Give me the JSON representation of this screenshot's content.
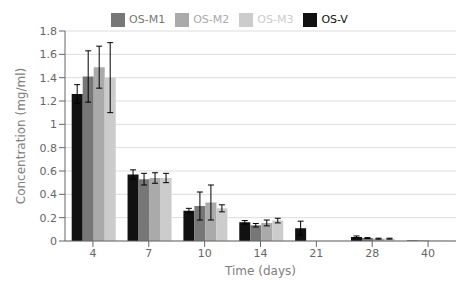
{
  "chart_data": {
    "type": "bar",
    "x_label": "Time (days)",
    "y_label": "Concentration (mg/ml)",
    "categories": [
      "4",
      "7",
      "10",
      "14",
      "21",
      "28",
      "40"
    ],
    "series": [
      {
        "name": "OS-V",
        "color": "#111111",
        "values": [
          1.26,
          0.57,
          0.26,
          0.16,
          0.11,
          0.035,
          0.005
        ],
        "errors": [
          0.08,
          0.04,
          0.02,
          0.015,
          0.06,
          0.008,
          0.0
        ]
      },
      {
        "name": "OS-M1",
        "color": "#777777",
        "values": [
          1.41,
          0.53,
          0.3,
          0.135,
          0.0,
          0.025,
          0.005
        ],
        "errors": [
          0.22,
          0.05,
          0.12,
          0.015,
          0.0,
          0.004,
          0.0
        ]
      },
      {
        "name": "OS-M2",
        "color": "#aaaaaa",
        "values": [
          1.49,
          0.54,
          0.33,
          0.155,
          0.0,
          0.02,
          0.003
        ],
        "errors": [
          0.18,
          0.045,
          0.15,
          0.025,
          0.0,
          0.004,
          0.0
        ]
      },
      {
        "name": "OS-M3",
        "color": "#cccccc",
        "values": [
          1.4,
          0.54,
          0.28,
          0.175,
          0.0,
          0.02,
          0.003
        ],
        "errors": [
          0.3,
          0.04,
          0.03,
          0.02,
          0.0,
          0.004,
          0.0
        ]
      }
    ],
    "ylim": [
      0,
      1.8
    ],
    "yticks": [
      0,
      0.2,
      0.4,
      0.6,
      0.8,
      1.0,
      1.2,
      1.4,
      1.6,
      1.8
    ],
    "grid": true,
    "legend": "top"
  }
}
